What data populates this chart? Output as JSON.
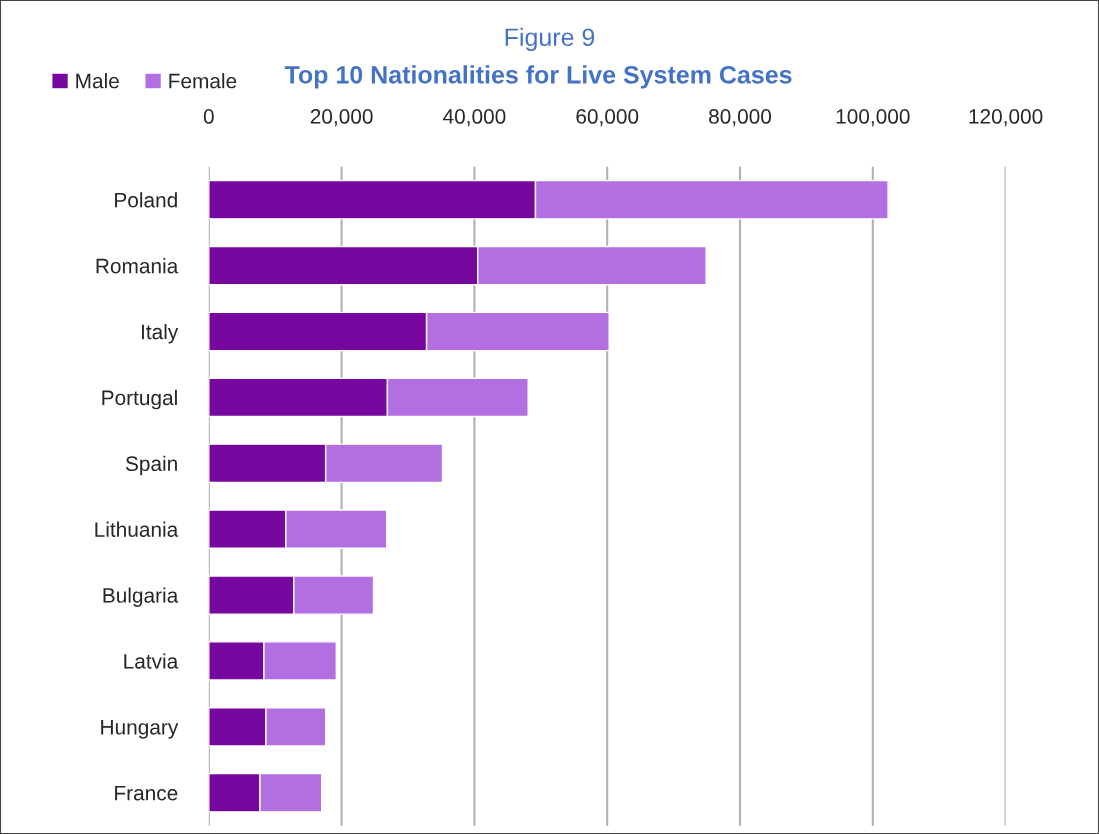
{
  "chart_data": {
    "type": "bar",
    "orientation": "horizontal",
    "stacked": true,
    "title": "Figure 9",
    "subtitle": "Top 10 Nationalities for Live System Cases",
    "categories": [
      "Poland",
      "Romania",
      "Italy",
      "Portugal",
      "Spain",
      "Lithuania",
      "Bulgaria",
      "Latvia",
      "Hungary",
      "France"
    ],
    "series": [
      {
        "name": "Male",
        "color": "#77089f",
        "values": [
          49200,
          40500,
          32800,
          26900,
          17600,
          11600,
          12800,
          8300,
          8600,
          7700
        ]
      },
      {
        "name": "Female",
        "color": "#b36ee2",
        "values": [
          53100,
          34400,
          27500,
          21200,
          17600,
          15200,
          12000,
          10900,
          9000,
          9300
        ]
      }
    ],
    "xlim": [
      0,
      120000
    ],
    "xticks": [
      0,
      {
        "value": 20000,
        "label": "20,000"
      },
      {
        "value": 40000,
        "label": "40,000"
      },
      {
        "value": 60000,
        "label": "60,000"
      },
      {
        "value": 80000,
        "label": "80,000"
      },
      {
        "value": 100000,
        "label": "100,000"
      },
      {
        "value": 120000,
        "label": "120,000"
      }
    ],
    "grid": "x",
    "legend": "top left"
  }
}
